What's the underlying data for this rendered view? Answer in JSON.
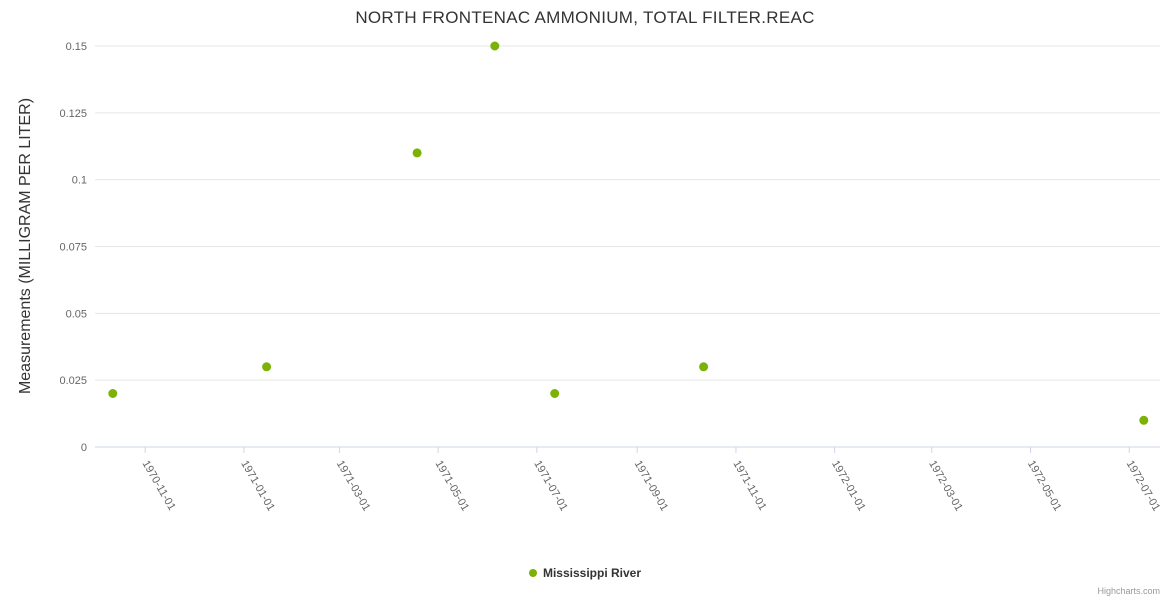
{
  "chart_data": {
    "type": "scatter",
    "title": "NORTH FRONTENAC AMMONIUM, TOTAL FILTER.REAC",
    "xlabel": "",
    "ylabel": "Measurements (MILLIGRAM PER LITER)",
    "ylim": [
      0,
      0.15
    ],
    "yticks": [
      {
        "value": 0,
        "label": "0"
      },
      {
        "value": 0.025,
        "label": "0.025"
      },
      {
        "value": 0.05,
        "label": "0.05"
      },
      {
        "value": 0.075,
        "label": "0.075"
      },
      {
        "value": 0.1,
        "label": "0.1"
      },
      {
        "value": 0.125,
        "label": "0.125"
      },
      {
        "value": 0.15,
        "label": "0.15"
      }
    ],
    "xticks": [
      "1970-11-01",
      "1971-01-01",
      "1971-03-01",
      "1971-05-01",
      "1971-07-01",
      "1971-09-01",
      "1971-11-01",
      "1972-01-01",
      "1972-03-01",
      "1972-05-01",
      "1972-07-01"
    ],
    "x_range": [
      "1970-10-01",
      "1972-07-20"
    ],
    "grid": true,
    "legend_position": "bottom",
    "series": [
      {
        "name": "Mississippi River",
        "color": "#7cb106",
        "points": [
          {
            "x": "1970-10-12",
            "y": 0.02
          },
          {
            "x": "1971-01-15",
            "y": 0.03
          },
          {
            "x": "1971-04-18",
            "y": 0.11
          },
          {
            "x": "1971-06-05",
            "y": 0.15
          },
          {
            "x": "1971-07-12",
            "y": 0.02
          },
          {
            "x": "1971-10-12",
            "y": 0.03
          },
          {
            "x": "1972-07-10",
            "y": 0.01
          }
        ]
      }
    ]
  },
  "legend": {
    "label": "Mississippi River",
    "marker_color": "#7cb106"
  },
  "watermark": "Highcharts.com",
  "colors": {
    "grid": "#e6e6e6",
    "axis_line": "#ccd6eb",
    "tick_label": "#666666",
    "title": "#333333",
    "point": "#7cb106"
  }
}
